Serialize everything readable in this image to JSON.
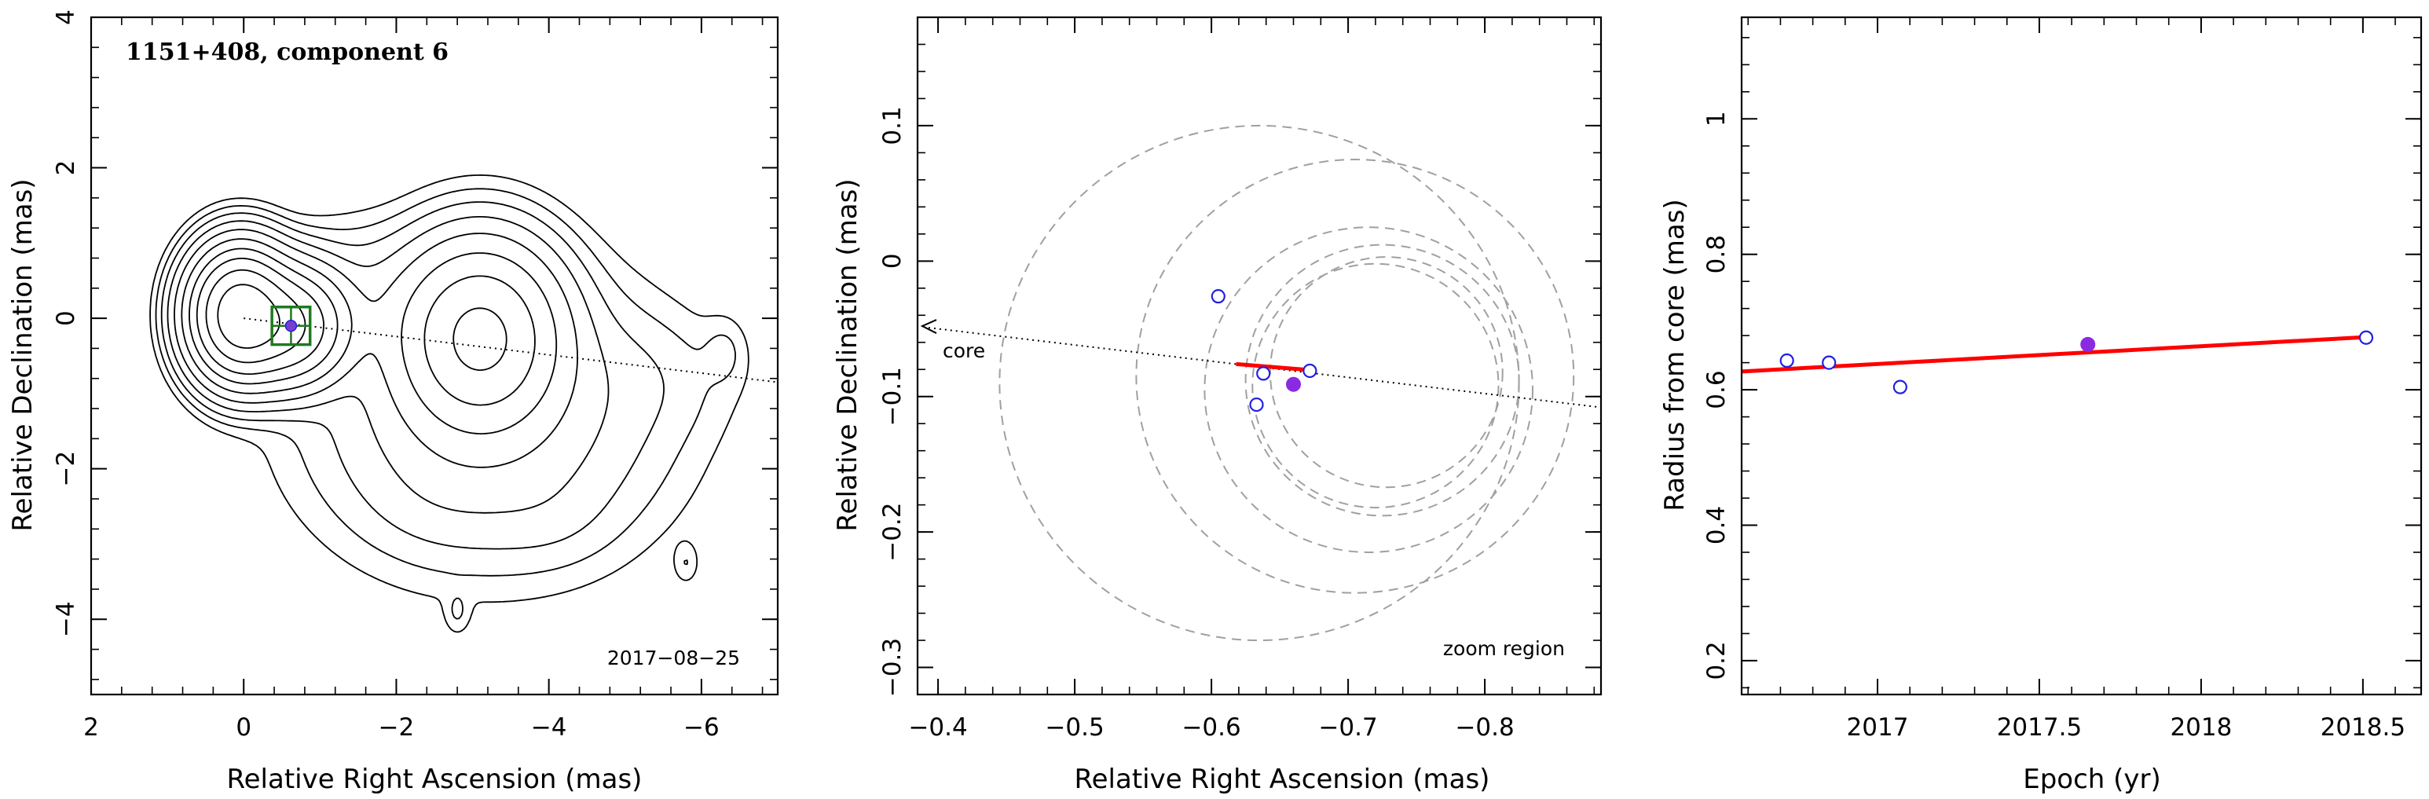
{
  "chart_data": [
    {
      "type": "contour",
      "title": "1151+408, component 6",
      "annotation": "2017−08−25",
      "xlabel": "Relative Right Ascension (mas)",
      "ylabel": "Relative Declination (mas)",
      "xlim": [
        2,
        -7
      ],
      "ylim": [
        -5,
        4
      ],
      "xticks": [
        2,
        0,
        -2,
        -4,
        -6
      ],
      "yticks": [
        -4,
        -2,
        0,
        2,
        4
      ],
      "xtick_labels": [
        "2",
        "0",
        "−2",
        "−4",
        "−6"
      ],
      "ytick_labels": [
        "−4",
        "−2",
        "0",
        "2",
        "4"
      ],
      "component_position": [
        -0.62,
        -0.1
      ],
      "box_size": 0.5,
      "ridge_line": {
        "x": [
          0,
          -7
        ],
        "y": [
          0,
          -0.85
        ]
      },
      "contour_sources": [
        {
          "x": 0.05,
          "y": 0.05,
          "sx": 0.32,
          "sy": 0.42,
          "amp": 1.0
        },
        {
          "x": -0.55,
          "y": -0.1,
          "sx": 0.4,
          "sy": 0.4,
          "amp": 0.45
        },
        {
          "x": -1.6,
          "y": 0.15,
          "sx": 0.7,
          "sy": 0.55,
          "amp": 0.012
        },
        {
          "x": -3.1,
          "y": -0.25,
          "sx": 0.55,
          "sy": 0.65,
          "amp": 0.25
        },
        {
          "x": -3.2,
          "y": -1.3,
          "sx": 1.2,
          "sy": 1.0,
          "amp": 0.025
        },
        {
          "x": -4.0,
          "y": -2.6,
          "sx": 0.5,
          "sy": 0.4,
          "amp": 0.002
        },
        {
          "x": -2.6,
          "y": -2.4,
          "sx": 0.6,
          "sy": 0.45,
          "amp": 0.002
        },
        {
          "x": -5.3,
          "y": -0.8,
          "sx": 0.7,
          "sy": 0.5,
          "amp": 0.0025
        },
        {
          "x": -6.3,
          "y": -0.45,
          "sx": 0.18,
          "sy": 0.28,
          "amp": 0.0025
        },
        {
          "x": -2.8,
          "y": -3.9,
          "sx": 0.1,
          "sy": 0.18,
          "amp": 0.0025
        },
        {
          "x": -5.8,
          "y": -3.25,
          "sx": 0.1,
          "sy": 0.17,
          "amp": 0.0025
        }
      ],
      "contour_levels": [
        0.0012,
        0.0028,
        0.006,
        0.013,
        0.028,
        0.06,
        0.12,
        0.22,
        0.4,
        0.7
      ]
    },
    {
      "type": "scatter",
      "annotation_core": "core",
      "annotation_zoom": "zoom region",
      "xlabel": "Relative Right Ascension (mas)",
      "ylabel": "Relative Declination (mas)",
      "xlim": [
        -0.385,
        -0.885
      ],
      "ylim": [
        -0.32,
        0.18
      ],
      "xticks": [
        -0.4,
        -0.5,
        -0.6,
        -0.7,
        -0.8
      ],
      "yticks": [
        -0.3,
        -0.2,
        -0.1,
        0,
        0.1
      ],
      "xtick_labels": [
        "−0.4",
        "−0.5",
        "−0.6",
        "−0.7",
        "−0.8"
      ],
      "ytick_labels": [
        "−0.3",
        "−0.2",
        "−0.1",
        "0",
        "0.1"
      ],
      "points_open": [
        {
          "x": -0.605,
          "y": -0.026
        },
        {
          "x": -0.638,
          "y": -0.083
        },
        {
          "x": -0.672,
          "y": -0.081
        },
        {
          "x": -0.633,
          "y": -0.106
        }
      ],
      "points_filled": [
        {
          "x": -0.66,
          "y": -0.091
        }
      ],
      "fit_line": {
        "x": [
          -0.618,
          -0.667
        ],
        "y": [
          -0.076,
          -0.08
        ]
      },
      "ridge_line": {
        "x": [
          -0.385,
          -0.885
        ],
        "y": [
          -0.048,
          -0.108
        ]
      },
      "circles": [
        {
          "x": -0.635,
          "y": -0.09,
          "r": 0.19
        },
        {
          "x": -0.705,
          "y": -0.085,
          "r": 0.16
        },
        {
          "x": -0.715,
          "y": -0.095,
          "r": 0.12
        },
        {
          "x": -0.725,
          "y": -0.088,
          "r": 0.1
        },
        {
          "x": -0.728,
          "y": -0.082,
          "r": 0.085
        },
        {
          "x": -0.72,
          "y": -0.092,
          "r": 0.09
        }
      ],
      "colors": {
        "points": "#2020e0",
        "filled": "#8a2be2",
        "fit": "#ff0000",
        "circles": "#a0a0a0"
      }
    },
    {
      "type": "scatter",
      "xlabel": "Epoch (yr)",
      "ylabel": "Radius from core (mas)",
      "xlim": [
        2016.58,
        2018.68
      ],
      "ylim": [
        0.15,
        1.15
      ],
      "xticks": [
        2017,
        2017.5,
        2018,
        2018.5
      ],
      "yticks": [
        0.2,
        0.4,
        0.6,
        0.8,
        1.0
      ],
      "xtick_labels": [
        "2017",
        "2017.5",
        "2018",
        "2018.5"
      ],
      "ytick_labels": [
        "0.2",
        "0.4",
        "0.6",
        "0.8",
        "1"
      ],
      "points_open": [
        {
          "x": 2016.72,
          "y": 0.643
        },
        {
          "x": 2016.85,
          "y": 0.64
        },
        {
          "x": 2017.07,
          "y": 0.604
        },
        {
          "x": 2018.51,
          "y": 0.677
        }
      ],
      "points_filled": [
        {
          "x": 2017.65,
          "y": 0.667
        }
      ],
      "fit_line": {
        "x": [
          2016.58,
          2018.52
        ],
        "y": [
          0.627,
          0.678
        ]
      },
      "colors": {
        "points": "#2020e0",
        "filled": "#8a2be2",
        "fit": "#ff0000"
      }
    }
  ]
}
